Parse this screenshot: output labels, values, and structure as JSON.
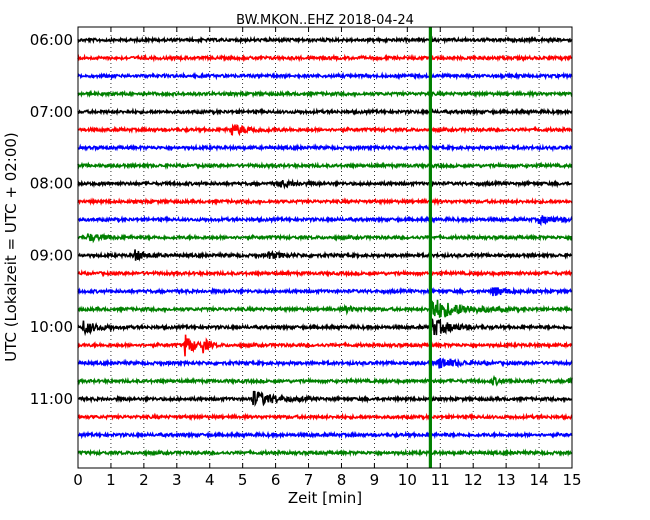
{
  "chart_data": {
    "type": "line",
    "title": "BW.MKON..EHZ 2018-04-24",
    "xlabel": "Zeit  [min]",
    "ylabel": "UTC (Lokalzeit = UTC + 02:00)",
    "xlim": [
      0,
      15
    ],
    "x_ticks": [
      "0",
      "1",
      "2",
      "3",
      "4",
      "5",
      "6",
      "7",
      "8",
      "9",
      "10",
      "11",
      "12",
      "13",
      "14",
      "15"
    ],
    "y_ticks": [
      {
        "label": "06:00",
        "row": 0
      },
      {
        "label": "07:00",
        "row": 4
      },
      {
        "label": "08:00",
        "row": 8
      },
      {
        "label": "09:00",
        "row": 12
      },
      {
        "label": "10:00",
        "row": 16
      },
      {
        "label": "11:00",
        "row": 20
      }
    ],
    "grid": "vertical-dotted",
    "row_minutes": 15,
    "row_colors": [
      "#000000",
      "#ff0000",
      "#0000ff",
      "#008000"
    ],
    "rows": [
      {
        "start": "06:00",
        "events": []
      },
      {
        "start": "06:15",
        "events": []
      },
      {
        "start": "06:30",
        "events": []
      },
      {
        "start": "06:45",
        "events": []
      },
      {
        "start": "07:00",
        "events": []
      },
      {
        "start": "07:15",
        "events": [
          {
            "t": 4.65,
            "amp": 0.6,
            "dur": 0.5
          }
        ]
      },
      {
        "start": "07:30",
        "events": []
      },
      {
        "start": "07:45",
        "events": []
      },
      {
        "start": "08:00",
        "events": [
          {
            "t": 6.1,
            "amp": 0.35,
            "dur": 0.4
          }
        ]
      },
      {
        "start": "08:15",
        "events": []
      },
      {
        "start": "08:30",
        "events": [
          {
            "t": 14.0,
            "amp": 0.4,
            "dur": 0.5
          }
        ]
      },
      {
        "start": "08:45",
        "events": [
          {
            "t": 0.3,
            "amp": 0.4,
            "dur": 0.4
          }
        ]
      },
      {
        "start": "09:00",
        "events": [
          {
            "t": 1.7,
            "amp": 0.6,
            "dur": 0.3
          },
          {
            "t": 5.8,
            "amp": 0.35,
            "dur": 0.4
          }
        ]
      },
      {
        "start": "09:15",
        "events": []
      },
      {
        "start": "09:30",
        "events": [
          {
            "t": 12.6,
            "amp": 0.5,
            "dur": 0.4
          }
        ]
      },
      {
        "start": "09:45",
        "events": [
          {
            "t": 10.75,
            "amp": 1.2,
            "dur": 0.8
          },
          {
            "t": 8.1,
            "amp": 0.3,
            "dur": 0.3
          }
        ]
      },
      {
        "start": "10:00",
        "events": [
          {
            "t": 0.15,
            "amp": 0.7,
            "dur": 0.4
          },
          {
            "t": 10.75,
            "amp": 1.0,
            "dur": 0.5
          }
        ]
      },
      {
        "start": "10:15",
        "events": [
          {
            "t": 3.25,
            "amp": 1.2,
            "dur": 0.25
          },
          {
            "t": 3.8,
            "amp": 0.7,
            "dur": 0.15
          }
        ]
      },
      {
        "start": "10:30",
        "events": [
          {
            "t": 10.95,
            "amp": 0.6,
            "dur": 0.5
          }
        ]
      },
      {
        "start": "10:45",
        "events": [
          {
            "t": 12.6,
            "amp": 0.35,
            "dur": 0.3
          },
          {
            "t": 14.9,
            "amp": 0.6,
            "dur": 0.2
          }
        ]
      },
      {
        "start": "11:00",
        "events": [
          {
            "t": 5.3,
            "amp": 0.9,
            "dur": 0.6
          }
        ]
      },
      {
        "start": "11:15",
        "events": []
      },
      {
        "start": "11:30",
        "events": []
      },
      {
        "start": "11:45",
        "events": []
      }
    ],
    "marker": {
      "t": 10.7,
      "color": "#008000"
    }
  }
}
